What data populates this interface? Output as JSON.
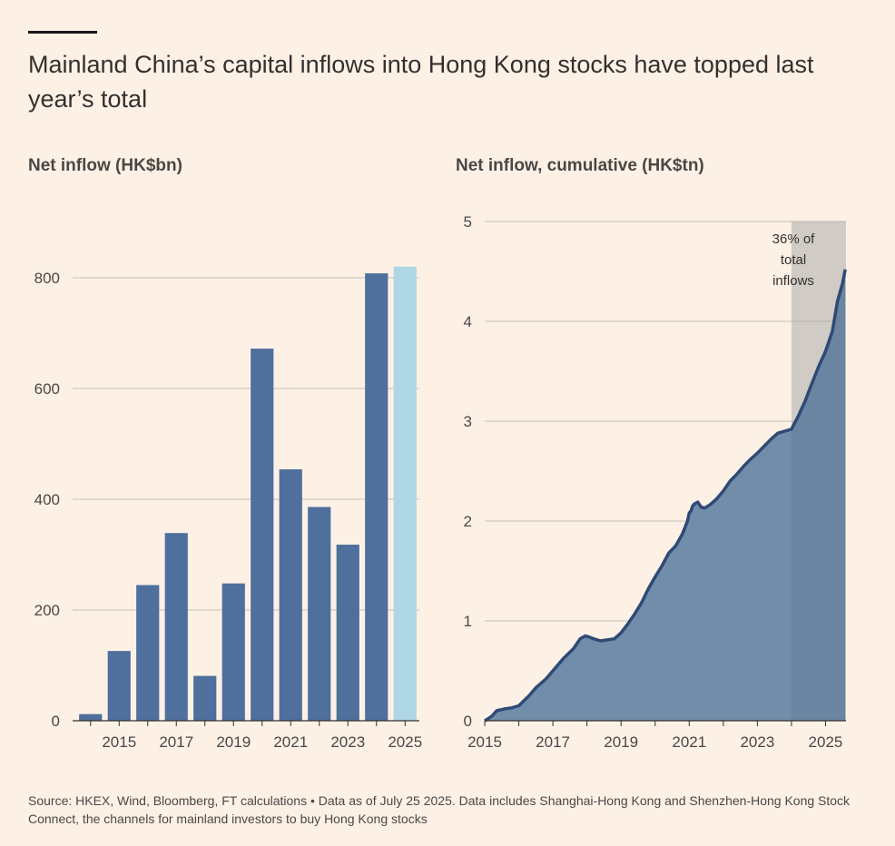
{
  "title": "Mainland China’s capital inflows into Hong Kong stocks have topped last year’s total",
  "source": "Source: HKEX, Wind, Bloomberg, FT calculations • Data as of July 25 2025. Data includes Shanghai-Hong Kong and Shenzhen-Hong Kong Stock Connect, the channels for mainland investors to buy Hong Kong stocks",
  "colors": {
    "bar": "#4F6F9C",
    "bar_highlight": "#AED6E4",
    "area": "#6A87A6",
    "line": "#2E4A75",
    "shade": "#E5DCD1",
    "grid": "#C9C0B6",
    "axis": "#33302E"
  },
  "chart_data": [
    {
      "type": "bar",
      "title": "Net inflow (HK$bn)",
      "categories": [
        "2014",
        "2015",
        "2016",
        "2017",
        "2018",
        "2019",
        "2020",
        "2021",
        "2022",
        "2023",
        "2024",
        "2025"
      ],
      "values": [
        12,
        126,
        245,
        339,
        81,
        248,
        672,
        454,
        386,
        318,
        808,
        820
      ],
      "highlight": [
        "2025"
      ],
      "x_tick_labels": [
        "2015",
        "2017",
        "2019",
        "2021",
        "2023",
        "2025"
      ],
      "y_ticks": [
        "0",
        "200",
        "400",
        "600",
        "800"
      ],
      "ylim": [
        0,
        900
      ],
      "grid": true
    },
    {
      "type": "area",
      "title": "Net inflow, cumulative (HK$tn)",
      "x_tick_labels": [
        "2015",
        "2017",
        "2019",
        "2021",
        "2023",
        "2025"
      ],
      "y_ticks": [
        "0",
        "1",
        "2",
        "3",
        "4",
        "5"
      ],
      "xlim": [
        2015,
        2025.6
      ],
      "ylim": [
        0,
        5
      ],
      "grid": true,
      "shaded_region": {
        "x": [
          2024,
          2025.6
        ],
        "label": [
          "36% of",
          "total",
          "inflows"
        ]
      },
      "series": [
        {
          "x": [
            2015.0,
            2015.1,
            2015.22,
            2015.35,
            2015.6,
            2015.8,
            2016.0,
            2016.3,
            2016.5,
            2016.8,
            2017.0,
            2017.3,
            2017.6,
            2017.8,
            2017.95,
            2018.05,
            2018.2,
            2018.4,
            2018.6,
            2018.8,
            2019.0,
            2019.2,
            2019.4,
            2019.6,
            2019.8,
            2020.0,
            2020.2,
            2020.4,
            2020.6,
            2020.8,
            2020.95,
            2021.0,
            2021.05,
            2021.1,
            2021.15,
            2021.25,
            2021.35,
            2021.45,
            2021.6,
            2021.8,
            2022.0,
            2022.2,
            2022.4,
            2022.6,
            2022.8,
            2023.0,
            2023.2,
            2023.4,
            2023.6,
            2023.8,
            2024.0,
            2024.2,
            2024.4,
            2024.6,
            2024.8,
            2025.0,
            2025.2,
            2025.35,
            2025.5,
            2025.58
          ],
          "y": [
            0.0,
            0.02,
            0.05,
            0.1,
            0.12,
            0.13,
            0.15,
            0.25,
            0.33,
            0.42,
            0.5,
            0.62,
            0.72,
            0.82,
            0.85,
            0.84,
            0.82,
            0.8,
            0.81,
            0.82,
            0.88,
            0.97,
            1.07,
            1.18,
            1.32,
            1.44,
            1.55,
            1.68,
            1.75,
            1.87,
            2.0,
            2.08,
            2.1,
            2.15,
            2.17,
            2.19,
            2.14,
            2.13,
            2.16,
            2.22,
            2.3,
            2.4,
            2.47,
            2.55,
            2.62,
            2.68,
            2.75,
            2.82,
            2.88,
            2.9,
            2.92,
            3.05,
            3.2,
            3.38,
            3.55,
            3.7,
            3.9,
            4.2,
            4.38,
            4.52
          ]
        }
      ]
    }
  ]
}
